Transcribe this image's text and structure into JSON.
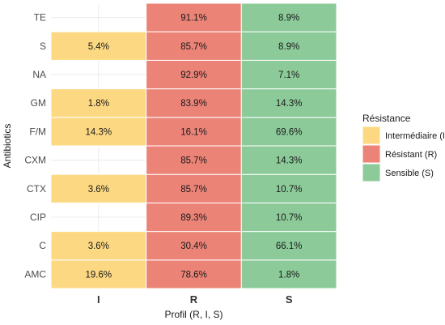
{
  "chart_data": {
    "type": "heatmap",
    "title": "",
    "xlabel": "Profil (R, I, S)",
    "ylabel": "Antibiotics",
    "x_categories": [
      "I",
      "R",
      "S"
    ],
    "y_categories": [
      "AMC",
      "C",
      "CIP",
      "CTX",
      "CXM",
      "F/M",
      "GM",
      "NA",
      "S",
      "TE"
    ],
    "cells": [
      {
        "y": "AMC",
        "x": "I",
        "value": 19.6,
        "label": "19.6%"
      },
      {
        "y": "AMC",
        "x": "R",
        "value": 78.6,
        "label": "78.6%"
      },
      {
        "y": "AMC",
        "x": "S",
        "value": 1.8,
        "label": "1.8%"
      },
      {
        "y": "C",
        "x": "I",
        "value": 3.6,
        "label": "3.6%"
      },
      {
        "y": "C",
        "x": "R",
        "value": 30.4,
        "label": "30.4%"
      },
      {
        "y": "C",
        "x": "S",
        "value": 66.1,
        "label": "66.1%"
      },
      {
        "y": "CIP",
        "x": "R",
        "value": 89.3,
        "label": "89.3%"
      },
      {
        "y": "CIP",
        "x": "S",
        "value": 10.7,
        "label": "10.7%"
      },
      {
        "y": "CTX",
        "x": "I",
        "value": 3.6,
        "label": "3.6%"
      },
      {
        "y": "CTX",
        "x": "R",
        "value": 85.7,
        "label": "85.7%"
      },
      {
        "y": "CTX",
        "x": "S",
        "value": 10.7,
        "label": "10.7%"
      },
      {
        "y": "CXM",
        "x": "R",
        "value": 85.7,
        "label": "85.7%"
      },
      {
        "y": "CXM",
        "x": "S",
        "value": 14.3,
        "label": "14.3%"
      },
      {
        "y": "F/M",
        "x": "I",
        "value": 14.3,
        "label": "14.3%"
      },
      {
        "y": "F/M",
        "x": "R",
        "value": 16.1,
        "label": "16.1%"
      },
      {
        "y": "F/M",
        "x": "S",
        "value": 69.6,
        "label": "69.6%"
      },
      {
        "y": "GM",
        "x": "I",
        "value": 1.8,
        "label": "1.8%"
      },
      {
        "y": "GM",
        "x": "R",
        "value": 83.9,
        "label": "83.9%"
      },
      {
        "y": "GM",
        "x": "S",
        "value": 14.3,
        "label": "14.3%"
      },
      {
        "y": "NA",
        "x": "R",
        "value": 92.9,
        "label": "92.9%"
      },
      {
        "y": "NA",
        "x": "S",
        "value": 7.1,
        "label": "7.1%"
      },
      {
        "y": "S",
        "x": "I",
        "value": 5.4,
        "label": "5.4%"
      },
      {
        "y": "S",
        "x": "R",
        "value": 85.7,
        "label": "85.7%"
      },
      {
        "y": "S",
        "x": "S",
        "value": 8.9,
        "label": "8.9%"
      },
      {
        "y": "TE",
        "x": "R",
        "value": 91.1,
        "label": "91.1%"
      },
      {
        "y": "TE",
        "x": "S",
        "value": 8.9,
        "label": "8.9%"
      }
    ],
    "colors": {
      "I": "#fdd882",
      "R": "#ec8377",
      "S": "#8ccb99"
    },
    "grid": true,
    "legend": {
      "title": "Résistance",
      "placement": "right",
      "items": [
        {
          "key": "I",
          "label": "Intermédiaire (I)"
        },
        {
          "key": "R",
          "label": "Résistant (R)"
        },
        {
          "key": "S",
          "label": "Sensible (S)"
        }
      ]
    }
  }
}
